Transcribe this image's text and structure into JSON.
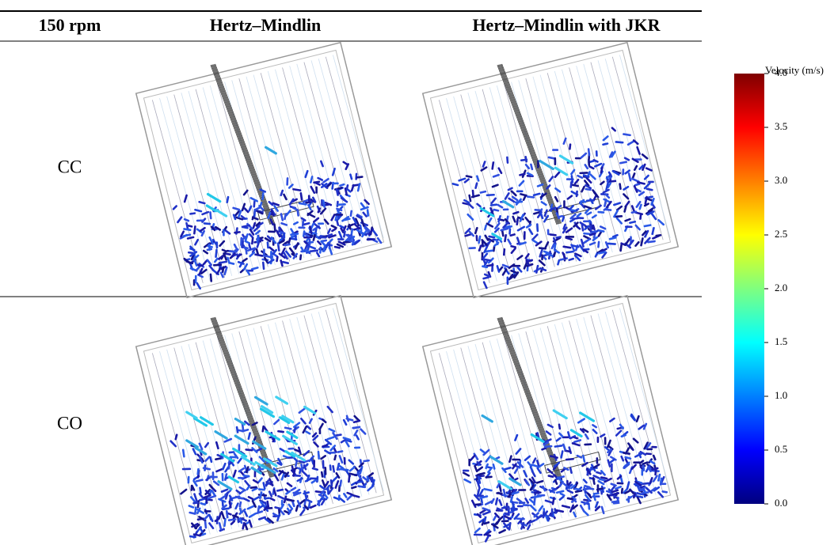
{
  "table": {
    "header": [
      "150 rpm",
      "Hertz–Mindlin",
      "Hertz–Mindlin with JKR"
    ],
    "rows": [
      [
        "CC"
      ],
      [
        "CO"
      ]
    ]
  },
  "colorbar": {
    "title": "Velocity (m/s)",
    "lim": [
      0,
      4
    ],
    "ticks": [
      {
        "value": 0,
        "label": "0.0"
      },
      {
        "value": 0.5,
        "label": "0.5"
      },
      {
        "value": 1,
        "label": "1.0"
      },
      {
        "value": 1.5,
        "label": "1.5"
      },
      {
        "value": 2,
        "label": "2.0"
      },
      {
        "value": 2.5,
        "label": "2.5"
      },
      {
        "value": 3,
        "label": "3.0"
      },
      {
        "value": 3.5,
        "label": "3.5"
      },
      {
        "value": 4,
        "label": "4.0"
      }
    ]
  }
}
